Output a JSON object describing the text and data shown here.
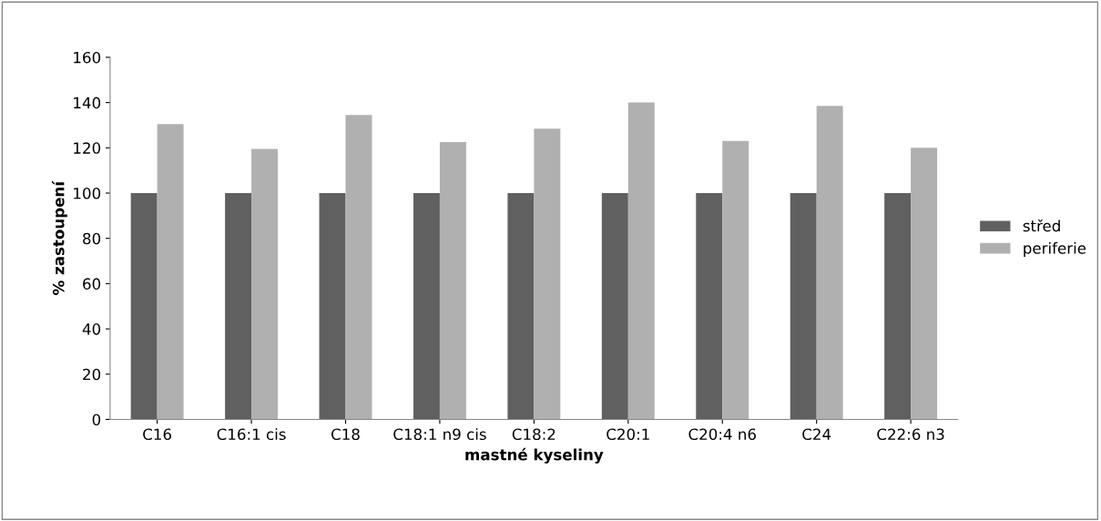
{
  "chart_data": {
    "type": "bar",
    "xlabel": "mastné kyseliny",
    "ylabel": "% zastoupení",
    "categories": [
      "C16",
      "C16:1 cis",
      "C18",
      "C18:1 n9 cis",
      "C18:2",
      "C20:1",
      "C20:4 n6",
      "C24",
      "C22:6 n3"
    ],
    "series": [
      {
        "name": "střed",
        "color": "#606060",
        "values": [
          100,
          100,
          100,
          100,
          100,
          100,
          100,
          100,
          100
        ]
      },
      {
        "name": "periferie",
        "color": "#b0b0b0",
        "values": [
          130.5,
          119.5,
          134.5,
          122.5,
          128.5,
          140,
          123,
          138.5,
          120
        ]
      }
    ],
    "ylim": [
      0,
      160
    ],
    "yticks": [
      0,
      20,
      40,
      60,
      80,
      100,
      120,
      140,
      160
    ],
    "grid": false,
    "legend": "right"
  }
}
